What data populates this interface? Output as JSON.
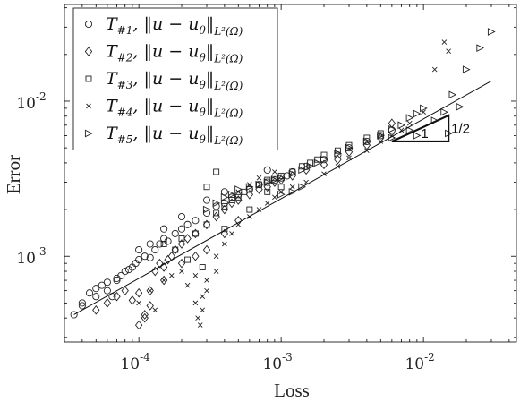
{
  "chart_data": {
    "type": "scatter",
    "xscale": "log",
    "yscale": "log",
    "xlim": [
      3e-05,
      0.045
    ],
    "ylim": [
      0.00028,
      0.042
    ],
    "xlabel": "Loss",
    "ylabel": "Error",
    "xticks": [
      0.0001,
      0.001,
      0.01
    ],
    "xtick_labels": [
      {
        "base": "10",
        "exp": "-4"
      },
      {
        "base": "10",
        "exp": "-3"
      },
      {
        "base": "10",
        "exp": "-2"
      }
    ],
    "yticks": [
      0.001,
      0.01
    ],
    "ytick_labels": [
      {
        "base": "10",
        "exp": "-3"
      },
      {
        "base": "10",
        "exp": "-2"
      }
    ],
    "grid": false,
    "legend_position": "top-left",
    "series": [
      {
        "name_main": "T",
        "name_sub": "#1",
        "name_norm": "‖u − u",
        "name_theta": "θ",
        "name_close": "‖",
        "name_space": "L²(Ω)",
        "marker": "circle",
        "points": [
          [
            3.5e-05,
            0.00042
          ],
          [
            4e-05,
            0.0005
          ],
          [
            4.5e-05,
            0.00058
          ],
          [
            5e-05,
            0.00062
          ],
          [
            5.5e-05,
            0.00065
          ],
          [
            6e-05,
            0.0006
          ],
          [
            6.5e-05,
            0.00055
          ],
          [
            7e-05,
            0.00072
          ],
          [
            7.5e-05,
            0.00075
          ],
          [
            8e-05,
            0.0008
          ],
          [
            8.5e-05,
            0.00082
          ],
          [
            9e-05,
            0.00085
          ],
          [
            9.5e-05,
            0.0009
          ],
          [
            0.0001,
            0.00095
          ],
          [
            0.00011,
            0.001
          ],
          [
            0.00012,
            0.00098
          ],
          [
            0.00013,
            0.0011
          ],
          [
            0.00014,
            0.0012
          ],
          [
            0.00015,
            0.0013
          ],
          [
            0.00016,
            0.00125
          ],
          [
            0.00018,
            0.0014
          ],
          [
            0.0002,
            0.0015
          ],
          [
            0.00022,
            0.0016
          ],
          [
            0.00025,
            0.0017
          ],
          [
            0.0003,
            0.0019
          ],
          [
            0.00035,
            0.0021
          ],
          [
            0.0004,
            0.0022
          ],
          [
            0.00045,
            0.0024
          ],
          [
            0.0005,
            0.0025
          ],
          [
            0.0006,
            0.0027
          ],
          [
            0.0007,
            0.0029
          ],
          [
            0.0008,
            0.003
          ],
          [
            0.0009,
            0.0031
          ],
          [
            0.001,
            0.0032
          ],
          [
            0.0011,
            0.0033
          ],
          [
            0.0012,
            0.0035
          ],
          [
            0.0015,
            0.0038
          ],
          [
            0.002,
            0.0042
          ],
          [
            0.0025,
            0.0045
          ],
          [
            0.003,
            0.005
          ],
          [
            0.004,
            0.0055
          ],
          [
            0.005,
            0.006
          ],
          [
            0.006,
            0.0065
          ],
          [
            0.0008,
            0.0036
          ],
          [
            0.0001,
            0.0011
          ],
          [
            0.00012,
            0.0012
          ],
          [
            7e-05,
            0.0007
          ],
          [
            6e-05,
            0.00068
          ],
          [
            5e-05,
            0.00055
          ],
          [
            4e-05,
            0.00048
          ],
          [
            0.00015,
            0.0015
          ],
          [
            0.0002,
            0.0018
          ],
          [
            0.0003,
            0.0023
          ],
          [
            0.0004,
            0.0026
          ]
        ]
      },
      {
        "name_main": "T",
        "name_sub": "#2",
        "name_norm": "‖u − u",
        "name_theta": "θ",
        "name_close": "‖",
        "name_space": "L²(Ω)",
        "marker": "diamond",
        "points": [
          [
            5e-05,
            0.00045
          ],
          [
            6e-05,
            0.0005
          ],
          [
            7e-05,
            0.00055
          ],
          [
            8e-05,
            0.0006
          ],
          [
            9e-05,
            0.00052
          ],
          [
            0.0001,
            0.00058
          ],
          [
            0.00011,
            0.00042
          ],
          [
            0.00012,
            0.00048
          ],
          [
            0.00013,
            0.0008
          ],
          [
            0.00014,
            0.0009
          ],
          [
            0.00015,
            0.00085
          ],
          [
            0.00016,
            0.00095
          ],
          [
            0.00017,
            0.001
          ],
          [
            0.00018,
            0.0011
          ],
          [
            0.0002,
            0.0012
          ],
          [
            0.00022,
            0.0013
          ],
          [
            0.00025,
            0.0014
          ],
          [
            0.0003,
            0.0016
          ],
          [
            0.00035,
            0.0018
          ],
          [
            0.0004,
            0.002
          ],
          [
            0.00045,
            0.0022
          ],
          [
            0.0005,
            0.0023
          ],
          [
            0.0006,
            0.0025
          ],
          [
            0.0007,
            0.0027
          ],
          [
            0.0008,
            0.0028
          ],
          [
            0.0009,
            0.003
          ],
          [
            0.001,
            0.0031
          ],
          [
            0.0012,
            0.0033
          ],
          [
            0.0015,
            0.0036
          ],
          [
            0.002,
            0.0039
          ],
          [
            0.0025,
            0.0042
          ],
          [
            0.003,
            0.0047
          ],
          [
            0.004,
            0.0052
          ],
          [
            0.005,
            0.0058
          ],
          [
            0.006,
            0.0072
          ],
          [
            0.00012,
            0.0006
          ],
          [
            0.0001,
            0.00036
          ],
          [
            0.00011,
            0.0004
          ],
          [
            0.00015,
            0.0007
          ],
          [
            0.0002,
            0.0009
          ],
          [
            0.00025,
            0.001
          ],
          [
            0.0003,
            0.0011
          ],
          [
            0.0004,
            0.0014
          ],
          [
            0.0005,
            0.0017
          ]
        ]
      },
      {
        "name_main": "T",
        "name_sub": "#3",
        "name_norm": "‖u − u",
        "name_theta": "θ",
        "name_close": "‖",
        "name_space": "L²(Ω)",
        "marker": "square",
        "points": [
          [
            0.00015,
            0.0012
          ],
          [
            0.00018,
            0.0011
          ],
          [
            0.0002,
            0.0013
          ],
          [
            0.00022,
            0.00095
          ],
          [
            0.00025,
            0.0014
          ],
          [
            0.00028,
            0.00085
          ],
          [
            0.0003,
            0.0016
          ],
          [
            0.00035,
            0.0019
          ],
          [
            0.0004,
            0.0021
          ],
          [
            0.00045,
            0.0023
          ],
          [
            0.0005,
            0.0024
          ],
          [
            0.00055,
            0.0026
          ],
          [
            0.0006,
            0.0027
          ],
          [
            0.0007,
            0.0029
          ],
          [
            0.0008,
            0.0031
          ],
          [
            0.0009,
            0.0032
          ],
          [
            0.001,
            0.0033
          ],
          [
            0.0012,
            0.0035
          ],
          [
            0.0014,
            0.0038
          ],
          [
            0.0016,
            0.004
          ],
          [
            0.0018,
            0.0042
          ],
          [
            0.002,
            0.0045
          ],
          [
            0.0025,
            0.0048
          ],
          [
            0.003,
            0.0052
          ],
          [
            0.004,
            0.0058
          ],
          [
            0.005,
            0.0062
          ],
          [
            0.00035,
            0.0035
          ],
          [
            0.0003,
            0.0028
          ],
          [
            0.0008,
            0.0026
          ],
          [
            0.0006,
            0.002
          ],
          [
            0.0004,
            0.0015
          ],
          [
            0.001,
            0.0028
          ]
        ]
      },
      {
        "name_main": "T",
        "name_sub": "#4",
        "name_norm": "‖u − u",
        "name_theta": "θ",
        "name_close": "‖",
        "name_space": "L²(Ω)",
        "marker": "x",
        "points": [
          [
            0.0001,
            0.0005
          ],
          [
            0.00012,
            0.0006
          ],
          [
            0.00013,
            0.00045
          ],
          [
            0.00015,
            0.0007
          ],
          [
            0.00017,
            0.00075
          ],
          [
            0.0002,
            0.0008
          ],
          [
            0.00022,
            0.00065
          ],
          [
            0.00025,
            0.0005
          ],
          [
            0.00026,
            0.0004
          ],
          [
            0.00027,
            0.00036
          ],
          [
            0.00028,
            0.00045
          ],
          [
            0.0003,
            0.0007
          ],
          [
            0.00035,
            0.001
          ],
          [
            0.0004,
            0.0012
          ],
          [
            0.00045,
            0.0014
          ],
          [
            0.0005,
            0.0016
          ],
          [
            0.0006,
            0.0018
          ],
          [
            0.0007,
            0.002
          ],
          [
            0.0008,
            0.0022
          ],
          [
            0.0009,
            0.0024
          ],
          [
            0.001,
            0.0026
          ],
          [
            0.0012,
            0.0028
          ],
          [
            0.0015,
            0.003
          ],
          [
            0.002,
            0.0034
          ],
          [
            0.0025,
            0.0038
          ],
          [
            0.003,
            0.0043
          ],
          [
            0.004,
            0.0048
          ],
          [
            0.005,
            0.0055
          ],
          [
            0.006,
            0.006
          ],
          [
            0.007,
            0.0065
          ],
          [
            0.008,
            0.0072
          ],
          [
            0.01,
            0.0085
          ],
          [
            0.012,
            0.016
          ],
          [
            0.015,
            0.021
          ],
          [
            0.014,
            0.024
          ],
          [
            0.0007,
            0.0032
          ],
          [
            0.0009,
            0.0035
          ],
          [
            0.0006,
            0.0029
          ],
          [
            0.0005,
            0.0026
          ],
          [
            0.00028,
            0.00055
          ],
          [
            0.00025,
            0.00075
          ],
          [
            0.00035,
            0.0008
          ],
          [
            0.0003,
            0.0006
          ]
        ]
      },
      {
        "name_main": "T",
        "name_sub": "#5",
        "name_norm": "‖u − u",
        "name_theta": "θ",
        "name_close": "‖",
        "name_space": "L²(Ω)",
        "marker": "triangle-right",
        "points": [
          [
            0.0003,
            0.002
          ],
          [
            0.00035,
            0.0022
          ],
          [
            0.0004,
            0.0024
          ],
          [
            0.00045,
            0.0025
          ],
          [
            0.0005,
            0.0027
          ],
          [
            0.0006,
            0.0028
          ],
          [
            0.0007,
            0.0029
          ],
          [
            0.0008,
            0.003
          ],
          [
            0.0009,
            0.0031
          ],
          [
            0.001,
            0.0032
          ],
          [
            0.0012,
            0.0034
          ],
          [
            0.0014,
            0.0036
          ],
          [
            0.0016,
            0.0038
          ],
          [
            0.0018,
            0.004
          ],
          [
            0.002,
            0.0042
          ],
          [
            0.0025,
            0.0046
          ],
          [
            0.003,
            0.005
          ],
          [
            0.004,
            0.0055
          ],
          [
            0.005,
            0.006
          ],
          [
            0.006,
            0.0066
          ],
          [
            0.007,
            0.007
          ],
          [
            0.008,
            0.0078
          ],
          [
            0.009,
            0.0083
          ],
          [
            0.01,
            0.009
          ],
          [
            0.012,
            0.0075
          ],
          [
            0.014,
            0.0085
          ],
          [
            0.016,
            0.011
          ],
          [
            0.02,
            0.016
          ],
          [
            0.025,
            0.022
          ],
          [
            0.03,
            0.028
          ],
          [
            0.018,
            0.0092
          ],
          [
            0.008,
            0.0065
          ],
          [
            0.006,
            0.0058
          ],
          [
            0.0014,
            0.0028
          ],
          [
            0.0012,
            0.0026
          ],
          [
            0.001,
            0.0025
          ],
          [
            0.015,
            0.0062
          ],
          [
            0.009,
            0.006
          ]
        ]
      }
    ],
    "annotations": [
      {
        "type": "fit_line",
        "x": [
          3.5e-05,
          0.03
        ],
        "y": [
          0.00042,
          0.0135
        ]
      },
      {
        "type": "slope_triangle",
        "run_label": "1",
        "rise_label": "1/2",
        "x": [
          0.006,
          0.015
        ],
        "y_base": 0.0055
      }
    ]
  }
}
